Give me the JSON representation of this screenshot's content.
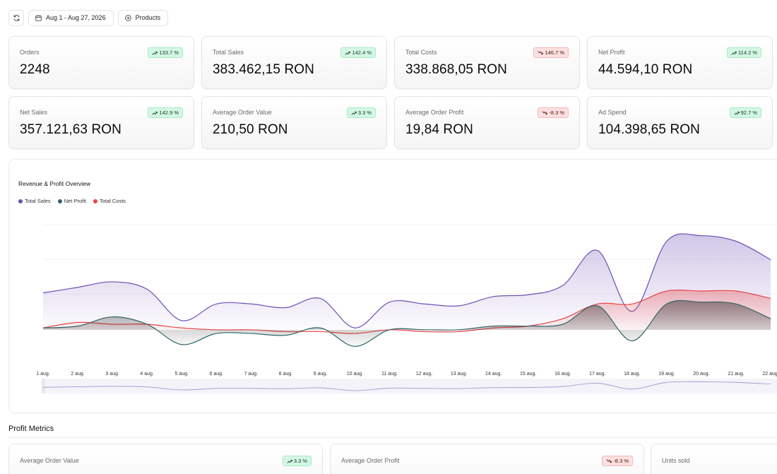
{
  "toolbar": {
    "date_range": "Aug 1 - Aug 27, 2026",
    "products_label": "Products"
  },
  "kpis": [
    {
      "label": "Orders",
      "value": "2248",
      "change": "133.7 %",
      "trend": "up"
    },
    {
      "label": "Total Sales",
      "value": "383.462,15 RON",
      "change": "142.4 %",
      "trend": "up"
    },
    {
      "label": "Total Costs",
      "value": "338.868,05 RON",
      "change": "146.7 %",
      "trend": "down"
    },
    {
      "label": "Net Profit",
      "value": "44.594,10 RON",
      "change": "114.2 %",
      "trend": "up"
    },
    {
      "label": "Net Sales",
      "value": "357.121,63 RON",
      "change": "142.9 %",
      "trend": "up"
    },
    {
      "label": "Average Order Value",
      "value": "210,50 RON",
      "change": "3.3 %",
      "trend": "up"
    },
    {
      "label": "Average Order Profit",
      "value": "19,84 RON",
      "change": "-8.3 %",
      "trend": "down"
    },
    {
      "label": "Ad Spend",
      "value": "104.398,65 RON",
      "change": "92.7 %",
      "trend": "up"
    }
  ],
  "chart": {
    "title": "Revenue & Profit Overview",
    "colors": {
      "sales": "#6e4fb5",
      "profit": "#2f6466",
      "costs": "#e84545"
    }
  },
  "chart_data": {
    "type": "area",
    "x": [
      "1 aug.",
      "2 aug.",
      "3 aug.",
      "4 aug.",
      "5 aug.",
      "6 aug.",
      "7 aug.",
      "8 aug.",
      "9 aug.",
      "10 aug.",
      "11 aug.",
      "12 aug.",
      "13 aug.",
      "14 aug.",
      "15 aug.",
      "16 aug.",
      "17 aug.",
      "18 aug.",
      "19 aug.",
      "20 aug.",
      "21 aug.",
      "22 aug."
    ],
    "series": [
      {
        "name": "Total Sales",
        "values": [
          11500,
          13000,
          14500,
          12500,
          4000,
          8500,
          8500,
          7500,
          10000,
          2000,
          9000,
          8500,
          8000,
          10500,
          11000,
          13500,
          23000,
          6500,
          25500,
          27000,
          25500,
          20500
        ]
      },
      {
        "name": "Net Profit",
        "values": [
          2000,
          2500,
          5000,
          3000,
          -2500,
          500,
          500,
          0,
          2000,
          -3000,
          1500,
          1500,
          1500,
          2500,
          2500,
          3000,
          8000,
          -1500,
          8500,
          9000,
          8500,
          4500
        ]
      },
      {
        "name": "Total Costs",
        "values": [
          2000,
          3500,
          3000,
          3000,
          2000,
          1500,
          1500,
          1000,
          1000,
          500,
          1500,
          1000,
          1000,
          2000,
          2500,
          4500,
          8500,
          8500,
          12000,
          12000,
          12000,
          10000
        ]
      }
    ],
    "grid": true,
    "legend": "top-left"
  },
  "profit_metrics": {
    "title": "Profit Metrics",
    "cards": [
      {
        "label": "Average Order Value",
        "change": "3.3 %",
        "trend": "up"
      },
      {
        "label": "Average Order Profit",
        "change": "-8.3 %",
        "trend": "down"
      },
      {
        "label": "Units sold"
      }
    ]
  }
}
